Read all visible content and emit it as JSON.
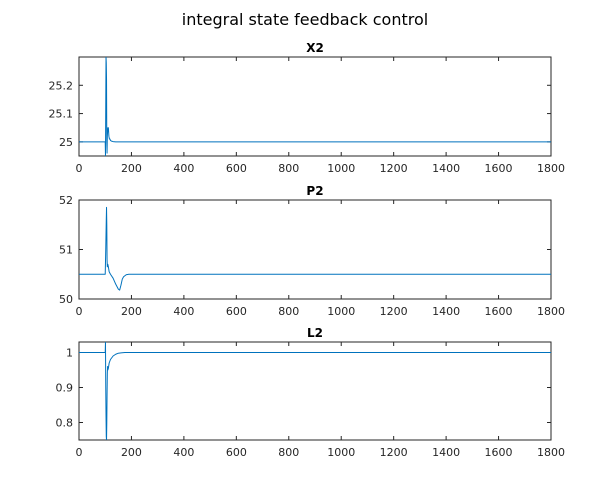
{
  "figure": {
    "title": "integral state feedback control"
  },
  "chart_data": [
    {
      "type": "line",
      "title": "X2",
      "xlabel": "",
      "ylabel": "",
      "xlim": [
        0,
        1800
      ],
      "ylim": [
        24.95,
        25.3
      ],
      "xticks": [
        0,
        200,
        400,
        600,
        800,
        1000,
        1200,
        1400,
        1600,
        1800
      ],
      "yticks": [
        25,
        25.1,
        25.2
      ],
      "grid": false,
      "color": "#0072bd",
      "x": [
        0,
        100,
        101,
        103,
        104,
        105,
        106,
        107,
        108,
        110,
        112,
        114,
        116,
        118,
        120,
        123,
        126,
        130,
        140,
        160,
        200,
        1800
      ],
      "y": [
        25.0,
        25.0,
        24.95,
        25.3,
        25.28,
        25.22,
        25.0,
        24.96,
        25.02,
        25.05,
        25.05,
        25.02,
        25.01,
        25.01,
        25.005,
        25.003,
        25.002,
        25.001,
        25.0,
        25.0,
        25.0,
        25.0
      ]
    },
    {
      "type": "line",
      "title": "P2",
      "xlabel": "",
      "ylabel": "",
      "xlim": [
        0,
        1800
      ],
      "ylim": [
        50,
        52
      ],
      "xticks": [
        0,
        200,
        400,
        600,
        800,
        1000,
        1200,
        1400,
        1600,
        1800
      ],
      "yticks": [
        50,
        51,
        52
      ],
      "grid": false,
      "color": "#0072bd",
      "x": [
        0,
        100,
        102,
        104,
        105,
        106,
        107,
        108,
        110,
        112,
        115,
        120,
        130,
        140,
        150,
        155,
        160,
        165,
        170,
        180,
        190,
        200,
        1800
      ],
      "y": [
        50.5,
        50.5,
        51.0,
        51.6,
        51.85,
        51.5,
        50.8,
        50.65,
        50.7,
        50.65,
        50.55,
        50.5,
        50.42,
        50.3,
        50.2,
        50.18,
        50.28,
        50.4,
        50.45,
        50.49,
        50.5,
        50.5,
        50.5
      ]
    },
    {
      "type": "line",
      "title": "L2",
      "xlabel": "",
      "ylabel": "",
      "xlim": [
        0,
        1800
      ],
      "ylim": [
        0.75,
        1.03
      ],
      "xticks": [
        0,
        200,
        400,
        600,
        800,
        1000,
        1200,
        1400,
        1600,
        1800
      ],
      "yticks": [
        0.8,
        0.9,
        1
      ],
      "grid": false,
      "color": "#0072bd",
      "x": [
        0,
        100,
        101,
        102,
        103,
        104,
        105,
        106,
        107,
        108,
        109,
        110,
        112,
        115,
        120,
        125,
        130,
        140,
        150,
        160,
        175,
        200,
        1800
      ],
      "y": [
        1.0,
        1.0,
        1.03,
        0.9,
        0.82,
        0.76,
        0.75,
        0.8,
        0.88,
        0.94,
        0.96,
        0.95,
        0.955,
        0.97,
        0.98,
        0.985,
        0.99,
        0.995,
        0.998,
        0.999,
        1.0,
        1.0,
        1.0
      ]
    }
  ]
}
